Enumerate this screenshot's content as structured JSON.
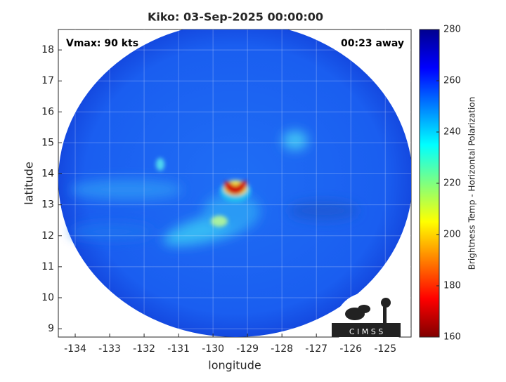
{
  "title": "Kiko: 03-Sep-2025 00:00:00",
  "annotations": {
    "left": "Vmax: 90 kts",
    "right": "00:23 away"
  },
  "x_axis": {
    "label": "longitude",
    "lim": [
      -134.49,
      -124.25
    ],
    "ticks": [
      -134,
      -133,
      -132,
      -131,
      -130,
      -129,
      -128,
      -127,
      -126,
      -125
    ]
  },
  "y_axis": {
    "label": "latitude",
    "lim": [
      8.73,
      18.66
    ],
    "ticks": [
      9,
      10,
      11,
      12,
      13,
      14,
      15,
      16,
      17,
      18
    ]
  },
  "colorbar": {
    "label": "Brightness Temp - Horizontal Polarization",
    "lim": [
      160,
      280
    ],
    "ticks": [
      160,
      180,
      200,
      220,
      240,
      260,
      280
    ]
  },
  "logo": "C I M S S"
}
